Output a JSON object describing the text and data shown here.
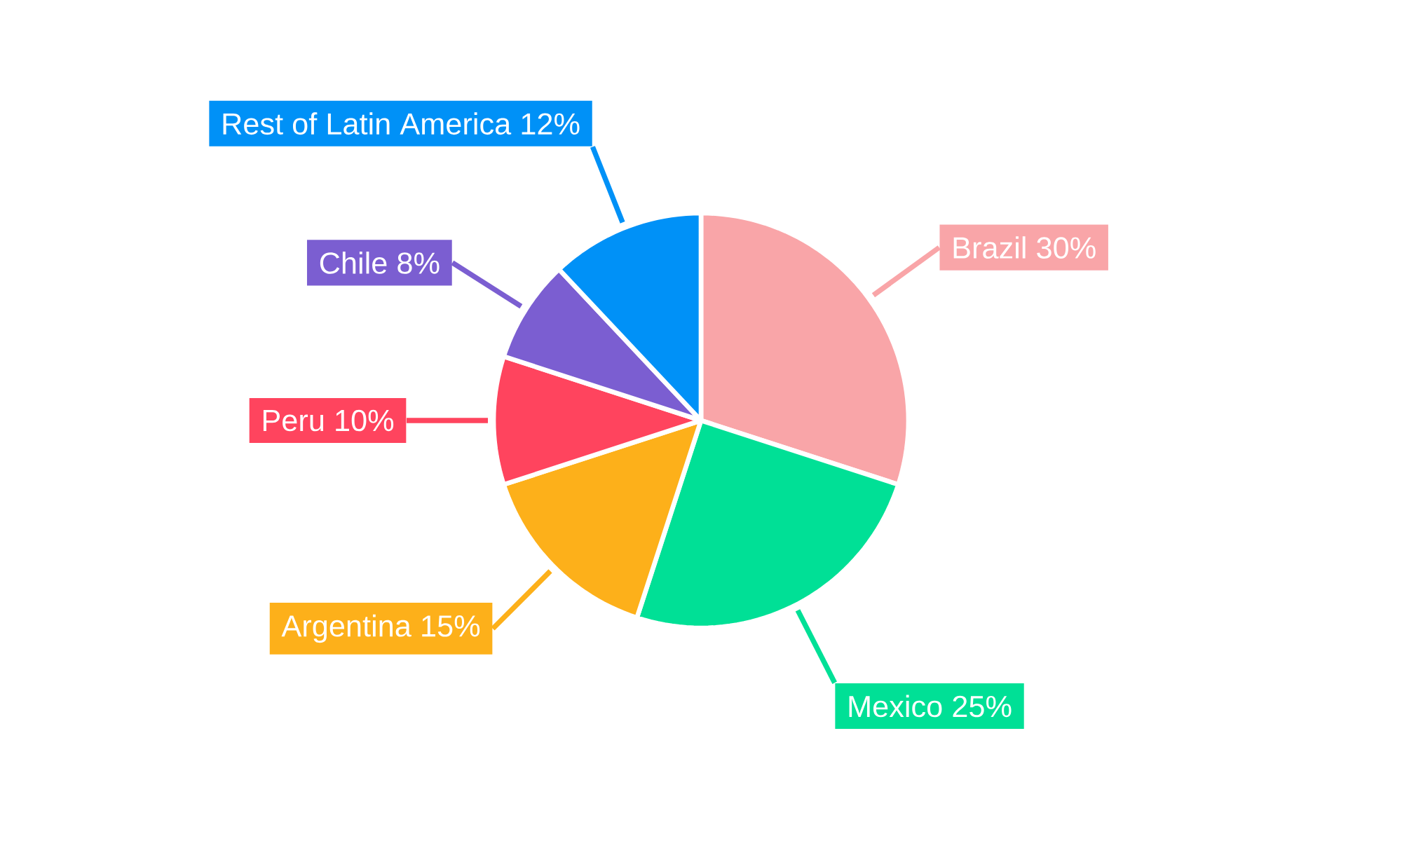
{
  "chart_data": {
    "type": "pie",
    "categories": [
      "Brazil",
      "Mexico",
      "Argentina",
      "Peru",
      "Chile",
      "Rest of Latin America"
    ],
    "values": [
      30,
      25,
      15,
      10,
      8,
      12
    ],
    "value_labels": [
      "30%",
      "25%",
      "15%",
      "10%",
      "8%",
      "12%"
    ],
    "colors": [
      "#f9a5a8",
      "#00e096",
      "#fdb01a",
      "#ff445e",
      "#7b5ed1",
      "#0091f7"
    ]
  }
}
